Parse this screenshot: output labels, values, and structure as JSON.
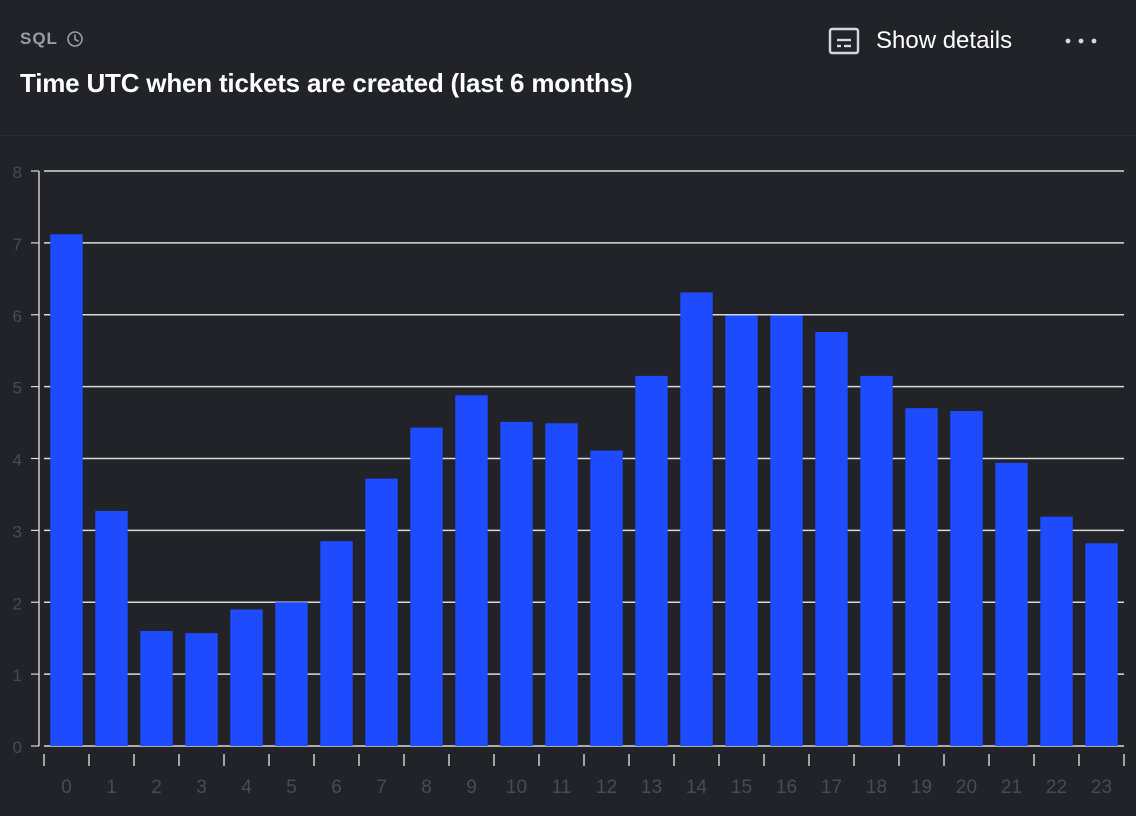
{
  "header": {
    "source_label": "SQL",
    "title": "Time UTC when tickets are created (last 6 months)",
    "details_label": "Show details"
  },
  "icons": {
    "clock": "clock-icon",
    "details": "details-panel-icon",
    "more": "more-dots-icon"
  },
  "colors": {
    "background": "#222329",
    "bar": "#1f4bff",
    "gridline": "#d9d9d9",
    "tick_label": "#4a4b52",
    "title": "#ffffff",
    "muted": "#9b9ca3"
  },
  "chart_data": {
    "type": "bar",
    "title": "",
    "xlabel": "",
    "ylabel": "",
    "categories": [
      "0",
      "1",
      "2",
      "3",
      "4",
      "5",
      "6",
      "7",
      "8",
      "9",
      "10",
      "11",
      "12",
      "13",
      "14",
      "15",
      "16",
      "17",
      "18",
      "19",
      "20",
      "21",
      "22",
      "23"
    ],
    "values": [
      7.12,
      3.27,
      1.6,
      1.57,
      1.9,
      2.0,
      2.85,
      3.72,
      4.43,
      4.88,
      4.51,
      4.49,
      4.11,
      5.15,
      6.31,
      5.99,
      5.99,
      5.76,
      5.15,
      4.7,
      4.66,
      3.94,
      3.19,
      2.82
    ],
    "ylim": [
      0,
      8
    ],
    "yticks": [
      0,
      1,
      2,
      3,
      4,
      5,
      6,
      7,
      8
    ],
    "grid": true,
    "legend": "none"
  }
}
